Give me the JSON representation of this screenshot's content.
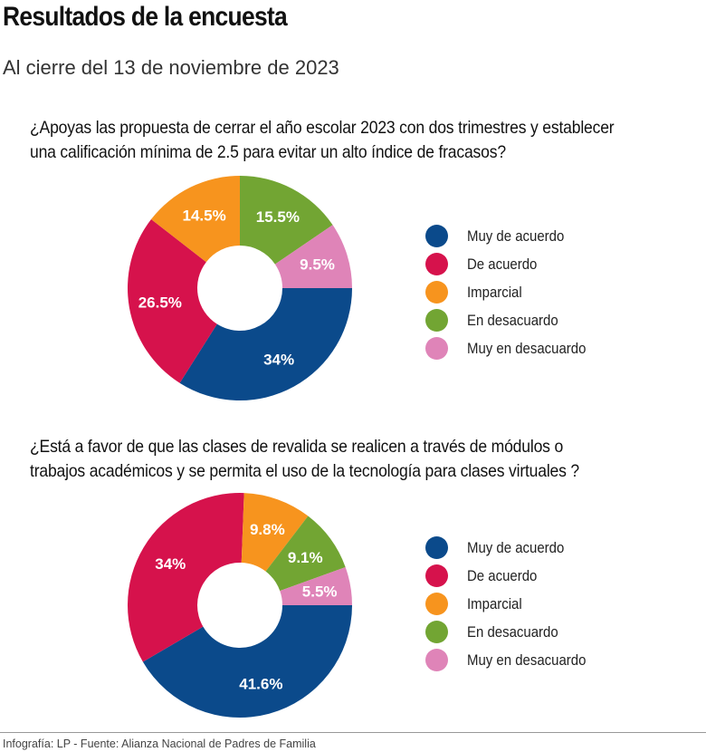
{
  "header": {
    "title": "Resultados de la encuesta",
    "subtitle": "Al cierre del 13 de noviembre de 2023"
  },
  "colors": {
    "Muy de acuerdo": "#0b4a8b",
    "De acuerdo": "#d6124c",
    "Imparcial": "#f7941e",
    "En desacuardo": "#72a533",
    "Muy en desacuardo": "#df84b8"
  },
  "chart_data": [
    {
      "type": "pie",
      "donut": true,
      "title": "¿Apoyas las propuesta de cerrar el año escolar 2023 con dos trimestres y establecer una calificación mínima de 2.5 para evitar un alto índice de fracasos?",
      "categories": [
        "Muy de acuerdo",
        "De acuerdo",
        "Imparcial",
        "En desacuardo",
        "Muy en desacuardo"
      ],
      "values": [
        34,
        26.5,
        14.5,
        15.5,
        9.5
      ],
      "data_labels": [
        "34%",
        "26.5%",
        "14.5%",
        "15.5%",
        "9.5%"
      ],
      "legend": "right"
    },
    {
      "type": "pie",
      "donut": true,
      "title": "¿Está a favor de que las clases de revalida se realicen a través de módulos o trabajos académicos y se permita el uso de la tecnología para clases virtuales ?",
      "categories": [
        "Muy de acuerdo",
        "De acuerdo",
        "Imparcial",
        "En desacuardo",
        "Muy en desacuardo"
      ],
      "values": [
        41.6,
        34,
        9.8,
        9.1,
        5.5
      ],
      "data_labels": [
        "41.6%",
        "34%",
        "9.8%",
        "9.1%",
        "5.5%"
      ],
      "legend": "right"
    }
  ],
  "footer": "Infografía: LP - Fuente: Alianza Nacional de Padres de Familia"
}
